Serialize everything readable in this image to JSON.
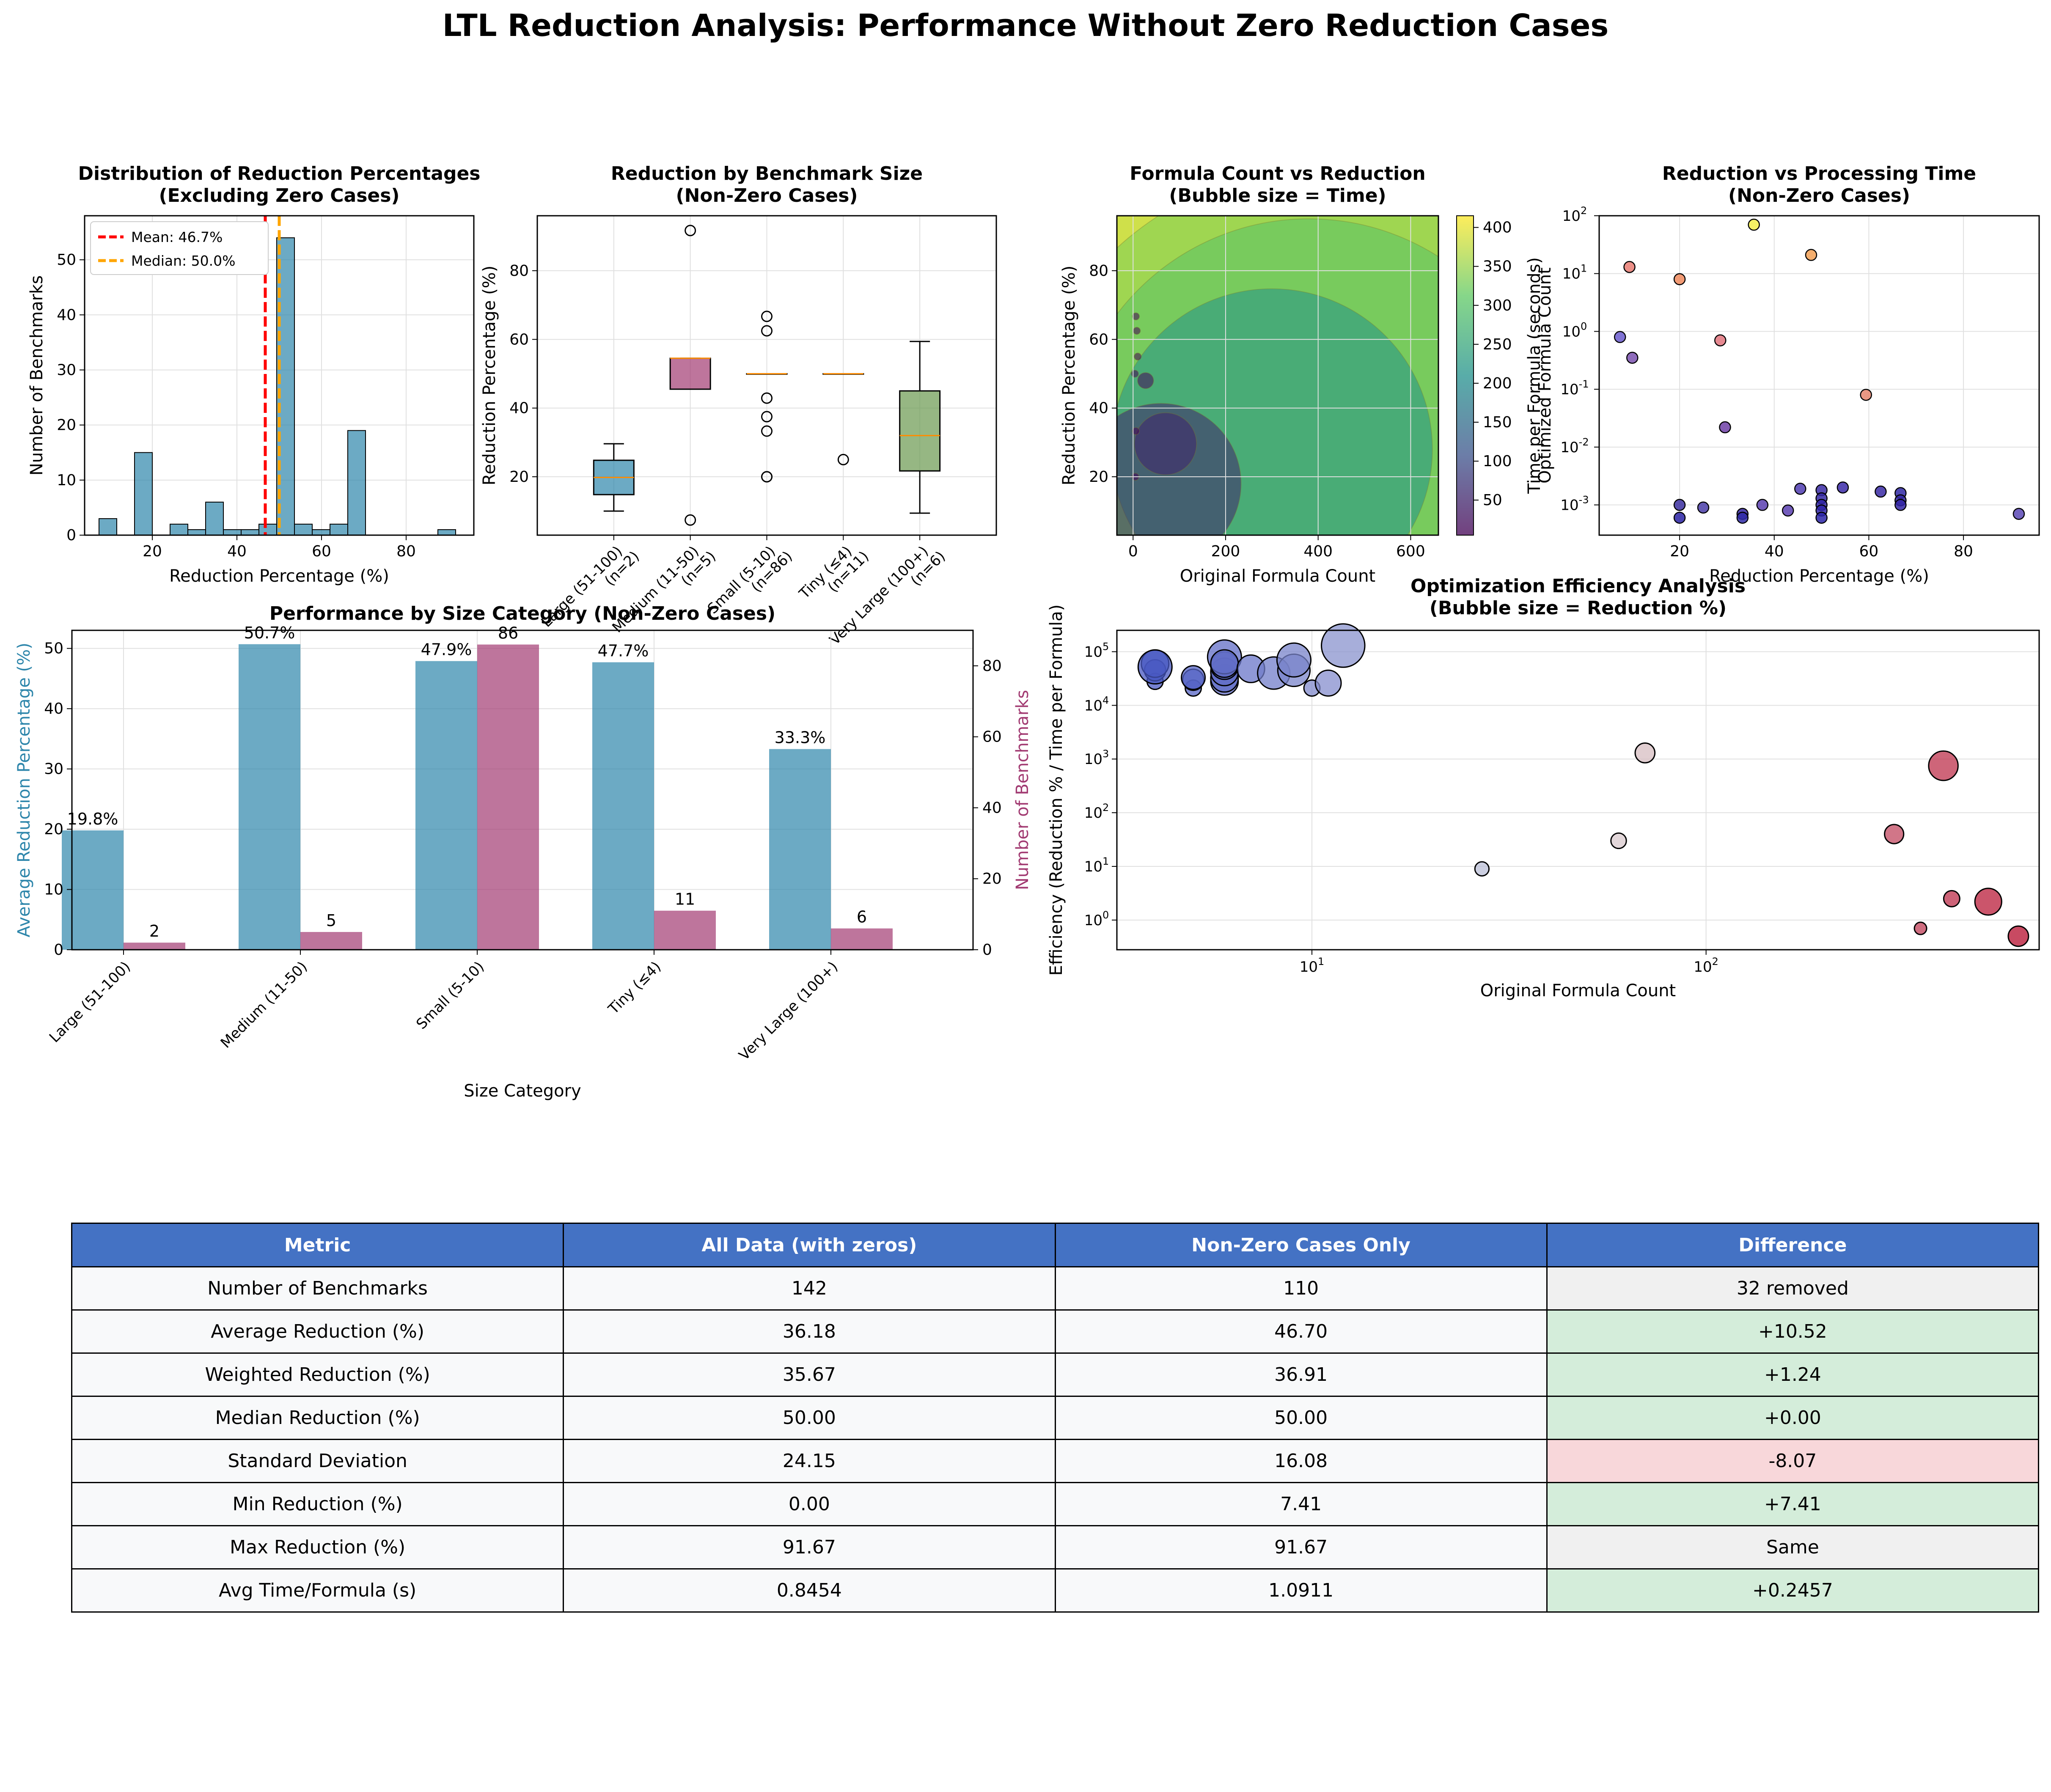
{
  "page": {
    "title": "LTL Reduction Analysis: Performance Without Zero Reduction Cases"
  },
  "colors": {
    "blue": "#2e86ab",
    "magenta": "#a23b72",
    "green": "#6a994e",
    "red": "#ff0000",
    "orange": "#ffa500",
    "table_header": "#4472c4",
    "positive": "#d4edda",
    "negative": "#f8d7da",
    "neutral": "#f0f0f0"
  },
  "chart_data": [
    {
      "type": "bar",
      "id": "histogram",
      "title": "Distribution of Reduction Percentages\n(Excluding Zero Cases)",
      "xlabel": "Reduction Percentage (%)",
      "ylabel": "Number of Benchmarks",
      "xlim": [
        4,
        96
      ],
      "ylim": [
        0,
        58
      ],
      "xticks": [
        20,
        40,
        60,
        80
      ],
      "yticks": [
        0,
        10,
        20,
        30,
        40,
        50
      ],
      "grid": true,
      "bins": [
        {
          "x0": 7.4,
          "x1": 11.6,
          "count": 3
        },
        {
          "x0": 15.8,
          "x1": 20.0,
          "count": 15
        },
        {
          "x0": 24.2,
          "x1": 28.4,
          "count": 2
        },
        {
          "x0": 28.4,
          "x1": 32.6,
          "count": 1
        },
        {
          "x0": 32.6,
          "x1": 36.8,
          "count": 6
        },
        {
          "x0": 36.8,
          "x1": 41.0,
          "count": 1
        },
        {
          "x0": 41.0,
          "x1": 45.2,
          "count": 1
        },
        {
          "x0": 45.2,
          "x1": 49.4,
          "count": 2
        },
        {
          "x0": 49.4,
          "x1": 53.6,
          "count": 54
        },
        {
          "x0": 53.6,
          "x1": 57.8,
          "count": 2
        },
        {
          "x0": 57.8,
          "x1": 62.0,
          "count": 1
        },
        {
          "x0": 62.0,
          "x1": 66.2,
          "count": 2
        },
        {
          "x0": 66.2,
          "x1": 70.4,
          "count": 19
        },
        {
          "x0": 87.5,
          "x1": 91.7,
          "count": 1
        }
      ],
      "mean": 46.7,
      "median": 50.0,
      "legend": [
        "Mean: 46.7%",
        "Median: 50.0%"
      ],
      "legend_position": "upper-left"
    },
    {
      "type": "box",
      "id": "boxplot",
      "title": "Reduction by Benchmark Size\n(Non-Zero Cases)",
      "ylabel": "Reduction Percentage (%)",
      "ylim": [
        3,
        96
      ],
      "yticks": [
        20,
        40,
        60,
        80
      ],
      "grid": true,
      "categories": [
        "Large (51-100)\n(n=2)",
        "Medium (11-50)\n(n=5)",
        "Small (5-10)\n(n=86)",
        "Tiny (≤4)\n(n=11)",
        "Very Large (100+)\n(n=6)"
      ],
      "boxes": [
        {
          "whisker_low": 10,
          "q1": 14.8,
          "median": 19.8,
          "q3": 24.8,
          "whisker_high": 29.6,
          "fliers": [],
          "color": "#2e86ab"
        },
        {
          "whisker_low": 45.5,
          "q1": 45.5,
          "median": 54.5,
          "q3": 54.5,
          "whisker_high": 54.5,
          "fliers": [
            7.4,
            91.7
          ],
          "color": "#a23b72"
        },
        {
          "whisker_low": 50,
          "q1": 50,
          "median": 50,
          "q3": 50,
          "whisker_high": 50,
          "fliers": [
            20,
            20,
            33.3,
            37.5,
            42.9,
            62.5,
            66.7
          ],
          "color": "#f18f01"
        },
        {
          "whisker_low": 50,
          "q1": 50,
          "median": 50,
          "q3": 50,
          "whisker_high": 50,
          "fliers": [
            25
          ],
          "color": "#c73e1d"
        },
        {
          "whisker_low": 9.4,
          "q1": 21.7,
          "median": 32.0,
          "q3": 45.0,
          "whisker_high": 59.4,
          "fliers": [],
          "color": "#6a994e"
        }
      ]
    },
    {
      "type": "scatter",
      "id": "bubble",
      "title": "Formula Count vs Reduction\n(Bubble size = Time)",
      "xlabel": "Original Formula Count",
      "ylabel": "Reduction Percentage (%)",
      "colorbar_label": "Optimized Formula Count",
      "xlim": [
        -35,
        660
      ],
      "ylim": [
        3,
        96
      ],
      "xticks": [
        0,
        200,
        400,
        600
      ],
      "yticks": [
        20,
        40,
        60,
        80
      ],
      "colorbar_ticks": [
        50,
        100,
        150,
        200,
        250,
        300,
        350,
        400
      ],
      "colorbar_range": [
        5,
        415
      ],
      "grid": true,
      "points": [
        {
          "x": 4,
          "y": 50,
          "time": 0.02,
          "opt": 2
        },
        {
          "x": 6,
          "y": 66.7,
          "time": 0.02,
          "opt": 2
        },
        {
          "x": 8,
          "y": 62.5,
          "time": 0.02,
          "opt": 3
        },
        {
          "x": 5,
          "y": 20,
          "time": 0.02,
          "opt": 4
        },
        {
          "x": 6,
          "y": 33.3,
          "time": 0.02,
          "opt": 4
        },
        {
          "x": 10,
          "y": 55,
          "time": 0.02,
          "opt": 5
        },
        {
          "x": 27,
          "y": 48,
          "time": 0.1,
          "opt": 14
        },
        {
          "x": 70,
          "y": 29.6,
          "time": 1.5,
          "opt": 49
        },
        {
          "x": 60,
          "y": 18,
          "time": 10,
          "opt": 50
        },
        {
          "x": 300,
          "y": 28,
          "time": 40,
          "opt": 214
        },
        {
          "x": 420,
          "y": 20,
          "time": 150,
          "opt": 330
        },
        {
          "x": 380,
          "y": 25,
          "time": 90,
          "opt": 300
        },
        {
          "x": 430,
          "y": 30,
          "time": 200,
          "opt": 360
        },
        {
          "x": 470,
          "y": 10,
          "time": 320,
          "opt": 420
        },
        {
          "x": 520,
          "y": 12,
          "time": 280,
          "opt": 455
        }
      ]
    },
    {
      "type": "scatter",
      "id": "time-scatter",
      "title": "Reduction vs Processing Time\n(Non-Zero Cases)",
      "xlabel": "Reduction Percentage (%)",
      "ylabel": "Time per Formula (seconds)",
      "xlim": [
        3,
        96
      ],
      "ylim": [
        0.0003,
        100
      ],
      "y_scale": "log",
      "xticks": [
        20,
        40,
        60,
        80
      ],
      "yticks": [
        "10^-3",
        "10^-2",
        "10^-1",
        "10^0",
        "10^1",
        "10^2"
      ],
      "grid": true,
      "points": [
        {
          "x": 7.4,
          "y": 0.8,
          "c": "#6a5acd"
        },
        {
          "x": 9.4,
          "y": 13,
          "c": "#e97b72"
        },
        {
          "x": 10,
          "y": 0.35,
          "c": "#7b52b0"
        },
        {
          "x": 20,
          "y": 8,
          "c": "#f08a5d"
        },
        {
          "x": 20,
          "y": 0.001,
          "c": "#3b2fa0"
        },
        {
          "x": 20,
          "y": 0.0006,
          "c": "#2a22a5"
        },
        {
          "x": 25,
          "y": 0.0009,
          "c": "#4a3da8"
        },
        {
          "x": 28.6,
          "y": 0.7,
          "c": "#e2747e"
        },
        {
          "x": 29.6,
          "y": 0.022,
          "c": "#6f3fa6"
        },
        {
          "x": 33.3,
          "y": 0.0007,
          "c": "#3426a0"
        },
        {
          "x": 33.3,
          "y": 0.0006,
          "c": "#2f2aa8"
        },
        {
          "x": 35.7,
          "y": 70,
          "c": "#f3ef4a"
        },
        {
          "x": 37.5,
          "y": 0.001,
          "c": "#5a40b0"
        },
        {
          "x": 42.9,
          "y": 0.0008,
          "c": "#5b3fb0"
        },
        {
          "x": 45.5,
          "y": 0.0019,
          "c": "#4f3cb0"
        },
        {
          "x": 47.8,
          "y": 21,
          "c": "#f2a055"
        },
        {
          "x": 50,
          "y": 0.0018,
          "c": "#3a2aa5"
        },
        {
          "x": 50,
          "y": 0.0013,
          "c": "#3528a5"
        },
        {
          "x": 50,
          "y": 0.001,
          "c": "#3025a5"
        },
        {
          "x": 50,
          "y": 0.0008,
          "c": "#2f25a8"
        },
        {
          "x": 50,
          "y": 0.0006,
          "c": "#2c24a8"
        },
        {
          "x": 54.5,
          "y": 0.002,
          "c": "#3b2aa8"
        },
        {
          "x": 59.4,
          "y": 0.08,
          "c": "#e6866e"
        },
        {
          "x": 62.5,
          "y": 0.0017,
          "c": "#3a2aa5"
        },
        {
          "x": 66.7,
          "y": 0.0016,
          "c": "#3028a5"
        },
        {
          "x": 66.7,
          "y": 0.0012,
          "c": "#3326a5"
        },
        {
          "x": 66.7,
          "y": 0.001,
          "c": "#3226a5"
        },
        {
          "x": 91.7,
          "y": 0.0007,
          "c": "#5a48b5"
        }
      ]
    },
    {
      "type": "bar",
      "id": "size-bars",
      "title": "Performance by Size Category (Non-Zero Cases)",
      "xlabel": "Size Category",
      "ylabel": "Average Reduction Percentage (%)",
      "y2label": "Number of Benchmarks",
      "categories": [
        "Large (51-100)",
        "Medium (11-50)",
        "Small (5-10)",
        "Tiny (≤4)",
        "Very Large (100+)"
      ],
      "ylim": [
        0,
        53
      ],
      "y2lim": [
        0,
        90
      ],
      "yticks": [
        0,
        10,
        20,
        30,
        40,
        50
      ],
      "y2ticks": [
        0,
        20,
        40,
        60,
        80
      ],
      "grid": true,
      "series": [
        {
          "name": "Average Reduction Percentage (%)",
          "axis": "left",
          "values": [
            19.8,
            50.7,
            47.9,
            47.7,
            33.3
          ],
          "labels": [
            "19.8%",
            "50.7%",
            "47.9%",
            "47.7%",
            "33.3%"
          ]
        },
        {
          "name": "Number of Benchmarks",
          "axis": "right",
          "values": [
            2,
            5,
            86,
            11,
            6
          ],
          "labels": [
            "2",
            "5",
            "86",
            "11",
            "6"
          ]
        }
      ]
    },
    {
      "type": "scatter",
      "id": "efficiency",
      "title": "Optimization Efficiency Analysis\n(Bubble size = Reduction %)",
      "xlabel": "Original Formula Count",
      "ylabel": "Efficiency (Reduction % / Time per Formula)",
      "x_scale": "log",
      "y_scale": "log",
      "xlim": [
        3.2,
        700
      ],
      "ylim": [
        0.28,
        250000
      ],
      "xticks": [
        "10^1",
        "10^2"
      ],
      "yticks": [
        "10^0",
        "10^1",
        "10^2",
        "10^3",
        "10^4",
        "10^5"
      ],
      "grid": true,
      "points": [
        {
          "x": 4,
          "y": 28000,
          "r": 20
        },
        {
          "x": 4,
          "y": 45000,
          "r": 33.3
        },
        {
          "x": 4,
          "y": 60000,
          "r": 50
        },
        {
          "x": 4,
          "y": 52000,
          "r": 66.7
        },
        {
          "x": 5,
          "y": 21000,
          "r": 20
        },
        {
          "x": 5,
          "y": 30000,
          "r": 33.3
        },
        {
          "x": 5,
          "y": 33000,
          "r": 40
        },
        {
          "x": 6,
          "y": 28000,
          "r": 50
        },
        {
          "x": 6,
          "y": 32000,
          "r": 50
        },
        {
          "x": 6,
          "y": 42000,
          "r": 50
        },
        {
          "x": 6,
          "y": 55000,
          "r": 50
        },
        {
          "x": 6,
          "y": 80000,
          "r": 66.7
        },
        {
          "x": 6,
          "y": 60000,
          "r": 50
        },
        {
          "x": 7,
          "y": 48000,
          "r": 50
        },
        {
          "x": 8,
          "y": 40000,
          "r": 62.5
        },
        {
          "x": 9,
          "y": 45000,
          "r": 62.5
        },
        {
          "x": 9,
          "y": 70000,
          "r": 66.7
        },
        {
          "x": 10,
          "y": 21000,
          "r": 20
        },
        {
          "x": 11,
          "y": 26000,
          "r": 45.5
        },
        {
          "x": 12,
          "y": 130000,
          "r": 91.7
        },
        {
          "x": 27,
          "y": 9,
          "r": 14.8
        },
        {
          "x": 60,
          "y": 30,
          "r": 18.3
        },
        {
          "x": 70,
          "y": 1300,
          "r": 29.6
        },
        {
          "x": 300,
          "y": 40,
          "r": 28
        },
        {
          "x": 350,
          "y": 0.7,
          "r": 10
        },
        {
          "x": 400,
          "y": 750,
          "r": 55
        },
        {
          "x": 420,
          "y": 2.5,
          "r": 20
        },
        {
          "x": 520,
          "y": 2.2,
          "r": 48
        },
        {
          "x": 620,
          "y": 0.5,
          "r": 31
        }
      ]
    }
  ],
  "table": {
    "headers": [
      "Metric",
      "All Data (with zeros)",
      "Non-Zero Cases Only",
      "Difference"
    ],
    "rows": [
      {
        "metric": "Number of Benchmarks",
        "all": "142",
        "nonzero": "110",
        "diff": "32 removed",
        "status": "neutral"
      },
      {
        "metric": "Average Reduction (%)",
        "all": "36.18",
        "nonzero": "46.70",
        "diff": "+10.52",
        "status": "positive"
      },
      {
        "metric": "Weighted Reduction (%)",
        "all": "35.67",
        "nonzero": "36.91",
        "diff": "+1.24",
        "status": "positive"
      },
      {
        "metric": "Median Reduction (%)",
        "all": "50.00",
        "nonzero": "50.00",
        "diff": "+0.00",
        "status": "positive"
      },
      {
        "metric": "Standard Deviation",
        "all": "24.15",
        "nonzero": "16.08",
        "diff": "-8.07",
        "status": "negative"
      },
      {
        "metric": "Min Reduction (%)",
        "all": "0.00",
        "nonzero": "7.41",
        "diff": "+7.41",
        "status": "positive"
      },
      {
        "metric": "Max Reduction (%)",
        "all": "91.67",
        "nonzero": "91.67",
        "diff": "Same",
        "status": "neutral"
      },
      {
        "metric": "Avg Time/Formula (s)",
        "all": "0.8454",
        "nonzero": "1.0911",
        "diff": "+0.2457",
        "status": "positive"
      }
    ]
  }
}
